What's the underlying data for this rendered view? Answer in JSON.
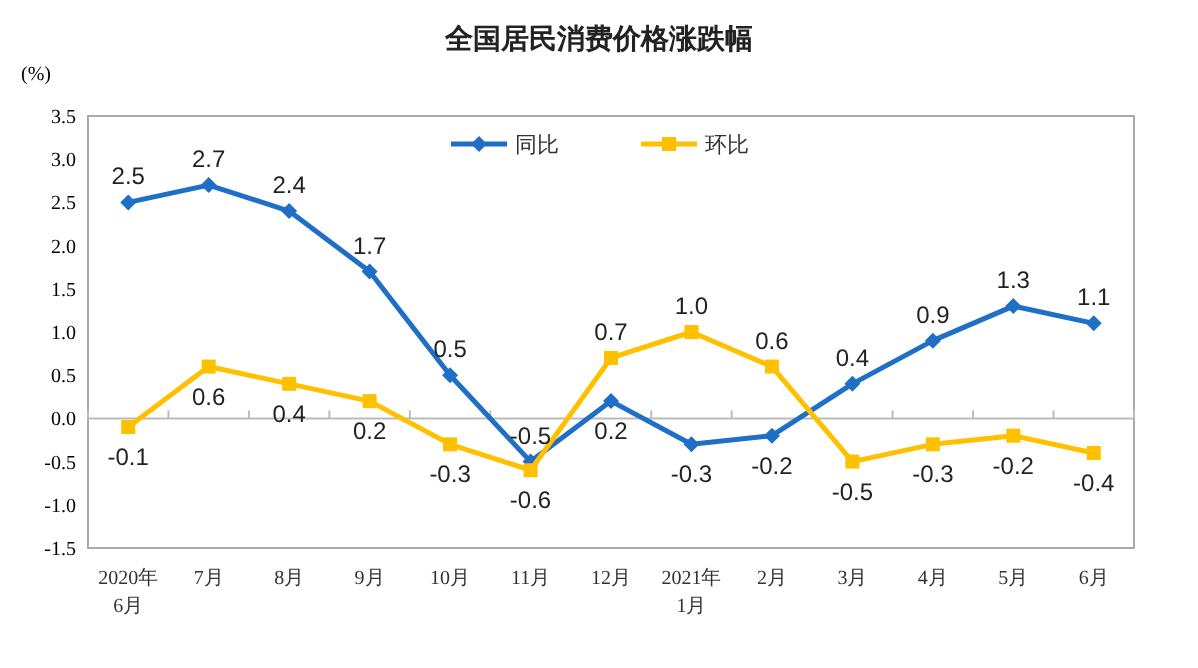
{
  "chart_data": {
    "type": "line",
    "title": "全国居民消费价格涨跌幅",
    "ylabel": "(%)",
    "categories": [
      "2020年\n6月",
      "7月",
      "8月",
      "9月",
      "10月",
      "11月",
      "12月",
      "2021年\n1月",
      "2月",
      "3月",
      "4月",
      "5月",
      "6月"
    ],
    "series": [
      {
        "name": "同比",
        "color": "#1f6fc6",
        "marker": "diamond",
        "values": [
          2.5,
          2.7,
          2.4,
          1.7,
          0.5,
          -0.5,
          0.2,
          -0.3,
          -0.2,
          0.4,
          0.9,
          1.3,
          1.1
        ],
        "value_labels": [
          "2.5",
          "2.7",
          "2.4",
          "1.7",
          "0.5",
          "-0.5",
          "0.2",
          "-0.3",
          "-0.2",
          "0.4",
          "0.9",
          "1.3",
          "1.1"
        ]
      },
      {
        "name": "环比",
        "color": "#ffc000",
        "marker": "square",
        "values": [
          -0.1,
          0.6,
          0.4,
          0.2,
          -0.3,
          -0.6,
          0.7,
          1.0,
          0.6,
          -0.5,
          -0.3,
          -0.2,
          -0.4
        ],
        "value_labels": [
          "-0.1",
          "0.6",
          "0.4",
          "0.2",
          "-0.3",
          "-0.6",
          "0.7",
          "1.0",
          "0.6",
          "-0.5",
          "-0.3",
          "-0.2",
          "-0.4"
        ]
      }
    ],
    "ylim": [
      -1.5,
      3.5
    ],
    "yticks": [
      {
        "value": 3.5,
        "label": "3.5"
      },
      {
        "value": 3,
        "label": "3.0"
      },
      {
        "value": 2.5,
        "label": "2.5"
      },
      {
        "value": 2,
        "label": "2.0"
      },
      {
        "value": 1.5,
        "label": "1.5"
      },
      {
        "value": 1,
        "label": "1.0"
      },
      {
        "value": 0.5,
        "label": "0.5"
      },
      {
        "value": 0,
        "label": "0.0"
      },
      {
        "value": -0.5,
        "label": "-0.5"
      },
      {
        "value": -1,
        "label": "-1.0"
      },
      {
        "value": -1.5,
        "label": "-1.5"
      }
    ],
    "legend": "top",
    "line_style": "solid"
  }
}
